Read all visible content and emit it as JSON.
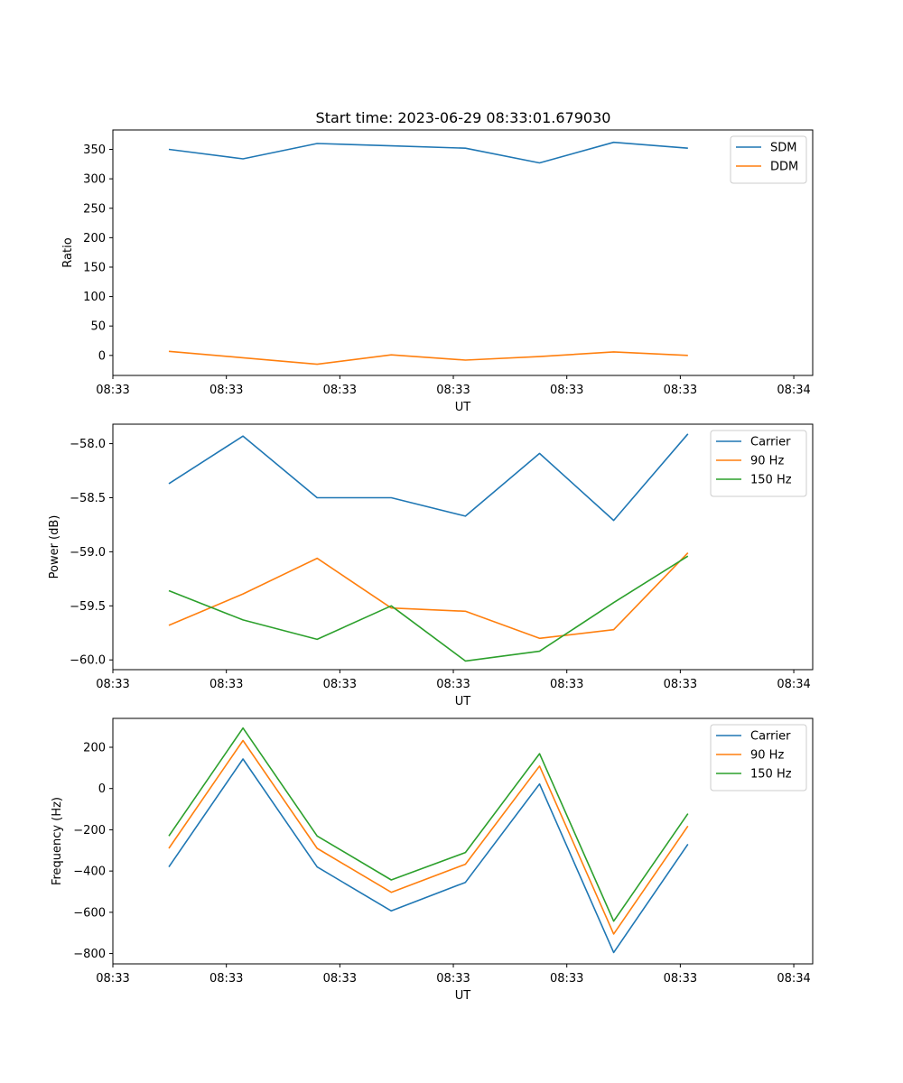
{
  "figure": {
    "title": "Start time: 2023-06-29 08:33:01.679030"
  },
  "colors": {
    "blue": "#1f77b4",
    "orange": "#ff7f0e",
    "green": "#2ca02c"
  },
  "chart_data": [
    {
      "type": "line",
      "ylabel": "Ratio",
      "xlabel": "UT",
      "xlim": [
        0,
        9.25
      ],
      "ylim": [
        -34,
        383
      ],
      "x_tick_positions": [
        0.0,
        1.5,
        3.0,
        4.5,
        6.0,
        7.5,
        9.0
      ],
      "x_tick_labels": [
        "08:33",
        "08:33",
        "08:33",
        "08:33",
        "08:33",
        "08:33",
        "08:34"
      ],
      "y_ticks": [
        0,
        50,
        100,
        150,
        200,
        250,
        300,
        350
      ],
      "y_tick_labels": [
        "0",
        "50",
        "100",
        "150",
        "200",
        "250",
        "300",
        "350"
      ],
      "x": [
        0.74,
        1.72,
        2.7,
        3.68,
        4.66,
        5.64,
        6.62,
        7.6
      ],
      "series": [
        {
          "name": "SDM",
          "color": "#1f77b4",
          "values": [
            350,
            334,
            360,
            356,
            352,
            327,
            362,
            352
          ]
        },
        {
          "name": "DDM",
          "color": "#ff7f0e",
          "values": [
            7,
            -4,
            -15,
            1,
            -8,
            -2,
            6,
            0
          ]
        }
      ],
      "legend": "top-right",
      "grid": false
    },
    {
      "type": "line",
      "ylabel": "Power (dB)",
      "xlabel": "UT",
      "xlim": [
        0,
        9.25
      ],
      "ylim": [
        -60.09,
        -57.82
      ],
      "x_tick_positions": [
        0.0,
        1.5,
        3.0,
        4.5,
        6.0,
        7.5,
        9.0
      ],
      "x_tick_labels": [
        "08:33",
        "08:33",
        "08:33",
        "08:33",
        "08:33",
        "08:33",
        "08:34"
      ],
      "y_ticks": [
        -60.0,
        -59.5,
        -59.0,
        -58.5,
        -58.0
      ],
      "y_tick_labels": [
        "−60.0",
        "−59.5",
        "−59.0",
        "−58.5",
        "−58.0"
      ],
      "x": [
        0.74,
        1.72,
        2.7,
        3.68,
        4.66,
        5.64,
        6.62,
        7.6
      ],
      "series": [
        {
          "name": "Carrier",
          "color": "#1f77b4",
          "values": [
            -58.37,
            -57.93,
            -58.5,
            -58.5,
            -58.67,
            -58.09,
            -58.71,
            -57.91
          ]
        },
        {
          "name": "90 Hz",
          "color": "#ff7f0e",
          "values": [
            -59.68,
            -59.39,
            -59.06,
            -59.52,
            -59.55,
            -59.8,
            -59.72,
            -59.01
          ]
        },
        {
          "name": "150 Hz",
          "color": "#2ca02c",
          "values": [
            -59.36,
            -59.63,
            -59.81,
            -59.5,
            -60.01,
            -59.92,
            -59.47,
            -59.04
          ]
        }
      ],
      "legend": "top-right",
      "grid": false
    },
    {
      "type": "line",
      "ylabel": "Frequency (Hz)",
      "xlabel": "UT",
      "xlim": [
        0,
        9.25
      ],
      "ylim": [
        -850,
        340
      ],
      "x_tick_positions": [
        0.0,
        1.5,
        3.0,
        4.5,
        6.0,
        7.5,
        9.0
      ],
      "x_tick_labels": [
        "08:33",
        "08:33",
        "08:33",
        "08:33",
        "08:33",
        "08:33",
        "08:34"
      ],
      "y_ticks": [
        -800,
        -600,
        -400,
        -200,
        0,
        200
      ],
      "y_tick_labels": [
        "−800",
        "−600",
        "−400",
        "−200",
        "0",
        "200"
      ],
      "x": [
        0.74,
        1.72,
        2.7,
        3.68,
        4.66,
        5.64,
        6.62,
        7.6
      ],
      "series": [
        {
          "name": "Carrier",
          "color": "#1f77b4",
          "values": [
            -380,
            143,
            -380,
            -593,
            -455,
            22,
            -795,
            -270
          ]
        },
        {
          "name": "90 Hz",
          "color": "#ff7f0e",
          "values": [
            -290,
            233,
            -290,
            -503,
            -367,
            109,
            -705,
            -182
          ]
        },
        {
          "name": "150 Hz",
          "color": "#2ca02c",
          "values": [
            -230,
            293,
            -230,
            -443,
            -310,
            169,
            -643,
            -122
          ]
        }
      ],
      "legend": "top-right",
      "grid": false
    }
  ]
}
